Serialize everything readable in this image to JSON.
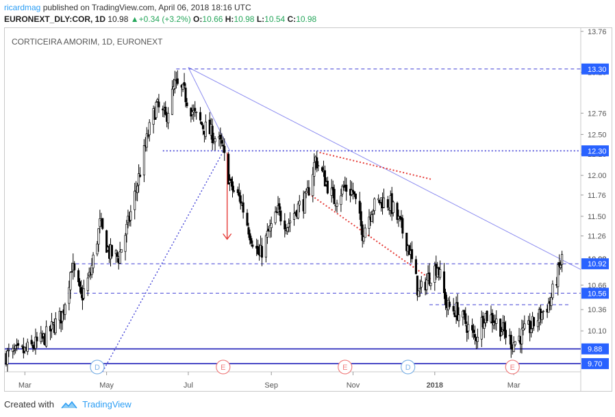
{
  "header": {
    "author": "ricardmag",
    "published_text": "published on TradingView.com, April 06, 2018 18:16 UTC",
    "symbol": "EURONEXT_DLY:COR, 1D",
    "last": "10.98",
    "change": "+0.34 (+3.2%)",
    "o_label": "O:",
    "o_value": "10.66",
    "h_label": "H:",
    "h_value": "10.98",
    "l_label": "L:",
    "l_value": "10.54",
    "c_label": "C:",
    "c_value": "10.98"
  },
  "chart_title": "CORTICEIRA AMORIM, 1D, EURONEXT",
  "footer": {
    "created_with": "Created with",
    "brand": "TradingView"
  },
  "colors": {
    "price_box": "#2962ff",
    "level_line": "#3f3fd6",
    "trend_line": "#8c8cf0",
    "red": "#e53935",
    "candle": "#000000",
    "event_circle": "#7fb3e6",
    "earnings_circle": "#f08080"
  },
  "chart_data": {
    "type": "candlestick",
    "ylim": [
      9.6,
      13.8
    ],
    "y_ticks": [
      "13.76",
      "13.26",
      "12.76",
      "12.50",
      "12.26",
      "12.00",
      "11.76",
      "11.50",
      "11.26",
      "10.66",
      "10.36",
      "10.10"
    ],
    "x_ticks": [
      "Mar",
      "May",
      "Jul",
      "Sep",
      "Nov",
      "2018",
      "Mar"
    ],
    "x_range": [
      "2017-02-14",
      "2018-04-20"
    ],
    "price_labels": [
      {
        "text": "13.30",
        "value": 13.3,
        "line": "dashed"
      },
      {
        "text": "12.30",
        "value": 12.3,
        "line": "dotted-bold"
      },
      {
        "text": "10.98",
        "value": 10.98,
        "line": "none",
        "style": "plain"
      },
      {
        "text": "10.92",
        "value": 10.92,
        "line": "dashed"
      },
      {
        "text": "10.56",
        "value": 10.56,
        "line": "dashed"
      },
      {
        "text": "9.88",
        "value": 9.88,
        "line": "solid"
      },
      {
        "text": "9.70",
        "value": 9.7,
        "line": "solid"
      }
    ],
    "events": [
      {
        "date": "2017-04-24",
        "label": "D",
        "kind": "dividend"
      },
      {
        "date": "2017-07-27",
        "label": "E",
        "kind": "earnings"
      },
      {
        "date": "2017-10-26",
        "label": "E",
        "kind": "earnings"
      },
      {
        "date": "2017-12-12",
        "label": "D",
        "kind": "dividend"
      },
      {
        "date": "2018-02-28",
        "label": "E",
        "kind": "earnings"
      }
    ],
    "price_path": [
      [
        "2017-02-15",
        9.8
      ],
      [
        "2017-03-01",
        9.85
      ],
      [
        "2017-03-15",
        10.0
      ],
      [
        "2017-03-29",
        10.3
      ],
      [
        "2017-04-05",
        10.9
      ],
      [
        "2017-04-12",
        10.5
      ],
      [
        "2017-04-19",
        10.8
      ],
      [
        "2017-04-26",
        11.4
      ],
      [
        "2017-05-03",
        11.05
      ],
      [
        "2017-05-10",
        11.0
      ],
      [
        "2017-05-17",
        11.4
      ],
      [
        "2017-05-24",
        11.9
      ],
      [
        "2017-06-01",
        12.5
      ],
      [
        "2017-06-07",
        12.85
      ],
      [
        "2017-06-14",
        12.7
      ],
      [
        "2017-06-21",
        13.1
      ],
      [
        "2017-06-28",
        13.0
      ],
      [
        "2017-07-05",
        12.75
      ],
      [
        "2017-07-12",
        12.6
      ],
      [
        "2017-07-19",
        12.5
      ],
      [
        "2017-07-26",
        12.35
      ],
      [
        "2017-08-02",
        11.85
      ],
      [
        "2017-08-09",
        11.7
      ],
      [
        "2017-08-16",
        11.3
      ],
      [
        "2017-08-23",
        11.0
      ],
      [
        "2017-08-30",
        11.3
      ],
      [
        "2017-09-06",
        11.55
      ],
      [
        "2017-09-13",
        11.4
      ],
      [
        "2017-09-20",
        11.6
      ],
      [
        "2017-09-27",
        11.7
      ],
      [
        "2017-10-04",
        12.2
      ],
      [
        "2017-10-11",
        11.95
      ],
      [
        "2017-10-18",
        11.7
      ],
      [
        "2017-10-25",
        11.85
      ],
      [
        "2017-11-01",
        11.8
      ],
      [
        "2017-11-08",
        11.3
      ],
      [
        "2017-11-15",
        11.6
      ],
      [
        "2017-11-22",
        11.7
      ],
      [
        "2017-11-29",
        11.65
      ],
      [
        "2017-12-06",
        11.4
      ],
      [
        "2017-12-13",
        11.1
      ],
      [
        "2017-12-20",
        10.55
      ],
      [
        "2017-12-27",
        10.75
      ],
      [
        "2018-01-03",
        10.9
      ],
      [
        "2018-01-10",
        10.4
      ],
      [
        "2018-01-17",
        10.35
      ],
      [
        "2018-01-24",
        10.2
      ],
      [
        "2018-01-31",
        10.0
      ],
      [
        "2018-02-07",
        10.3
      ],
      [
        "2018-02-14",
        10.25
      ],
      [
        "2018-02-21",
        10.1
      ],
      [
        "2018-02-28",
        9.95
      ],
      [
        "2018-03-07",
        10.05
      ],
      [
        "2018-03-14",
        10.15
      ],
      [
        "2018-03-21",
        10.3
      ],
      [
        "2018-03-28",
        10.45
      ],
      [
        "2018-04-06",
        10.98
      ]
    ],
    "drawings": [
      {
        "kind": "trend",
        "from": [
          "2017-04-28",
          9.6
        ],
        "to": [
          "2017-07-29",
          12.35
        ],
        "style": "dotted"
      },
      {
        "kind": "trend",
        "from": [
          "2017-07-01",
          13.32
        ],
        "to": [
          "2017-08-01",
          12.3
        ],
        "style": "solid"
      },
      {
        "kind": "trend",
        "from": [
          "2017-07-01",
          13.32
        ],
        "to": [
          "2018-04-20",
          10.85
        ],
        "style": "solid"
      },
      {
        "kind": "trend",
        "from": [
          "2017-10-07",
          12.28
        ],
        "to": [
          "2017-12-30",
          11.95
        ],
        "style": "red-dotted"
      },
      {
        "kind": "trend",
        "from": [
          "2017-09-27",
          11.8
        ],
        "to": [
          "2017-12-30",
          10.72
        ],
        "style": "red-dotted"
      },
      {
        "kind": "arrow",
        "from": [
          "2017-07-30",
          12.28
        ],
        "to": [
          "2017-07-30",
          11.22
        ],
        "style": "red"
      },
      {
        "kind": "segment",
        "from": [
          "2017-06-12",
          12.3
        ],
        "to": [
          "2018-04-20",
          12.3
        ],
        "style": "dotted-bold"
      },
      {
        "kind": "segment",
        "from": [
          "2017-06-22",
          13.3
        ],
        "to": [
          "2018-04-20",
          13.3
        ],
        "style": "dashed"
      },
      {
        "kind": "segment",
        "from": [
          "2017-04-08",
          10.92
        ],
        "to": [
          "2018-04-20",
          10.92
        ],
        "style": "dashed"
      },
      {
        "kind": "segment",
        "from": [
          "2017-04-02",
          10.56
        ],
        "to": [
          "2018-04-20",
          10.56
        ],
        "style": "dashed"
      },
      {
        "kind": "segment",
        "from": [
          "2017-12-28",
          10.42
        ],
        "to": [
          "2018-04-12",
          10.42
        ],
        "style": "dashed"
      }
    ]
  }
}
